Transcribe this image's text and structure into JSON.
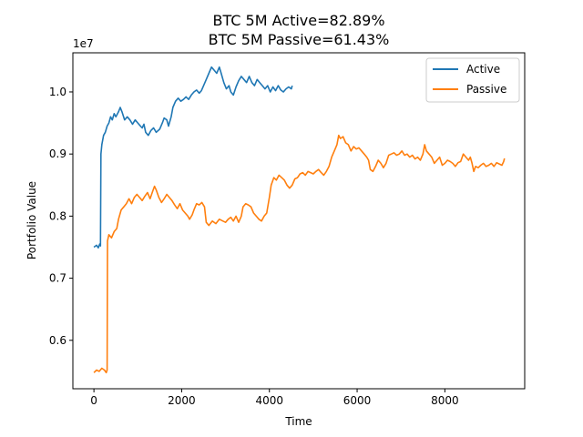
{
  "chart_data": {
    "type": "line",
    "title_line1": "BTC 5M Active=82.89%",
    "title_line2": "BTC 5M Passive=61.43%",
    "xlabel": "Time",
    "ylabel": "Portfolio Value",
    "y_offset_label": "1e7",
    "xlim": [
      -480,
      9820
    ],
    "ylim": [
      0.522,
      1.063
    ],
    "x_ticks": [
      {
        "value": 0,
        "label": "0"
      },
      {
        "value": 2000,
        "label": "2000"
      },
      {
        "value": 4000,
        "label": "4000"
      },
      {
        "value": 6000,
        "label": "6000"
      },
      {
        "value": 8000,
        "label": "8000"
      }
    ],
    "y_ticks": [
      {
        "value": 0.6,
        "label": "0.6"
      },
      {
        "value": 0.7,
        "label": "0.7"
      },
      {
        "value": 0.8,
        "label": "0.8"
      },
      {
        "value": 0.9,
        "label": "0.9"
      },
      {
        "value": 1.0,
        "label": "1.0"
      }
    ],
    "grid": false,
    "legend_position": "top-right",
    "series": [
      {
        "name": "Active",
        "color": "#1f77b4",
        "points": [
          [
            0,
            0.75
          ],
          [
            60,
            0.753
          ],
          [
            100,
            0.749
          ],
          [
            130,
            0.755
          ],
          [
            150,
            0.752
          ],
          [
            160,
            0.9
          ],
          [
            180,
            0.915
          ],
          [
            220,
            0.93
          ],
          [
            260,
            0.935
          ],
          [
            300,
            0.945
          ],
          [
            340,
            0.95
          ],
          [
            380,
            0.96
          ],
          [
            420,
            0.955
          ],
          [
            460,
            0.965
          ],
          [
            500,
            0.96
          ],
          [
            560,
            0.968
          ],
          [
            600,
            0.975
          ],
          [
            640,
            0.968
          ],
          [
            700,
            0.955
          ],
          [
            760,
            0.96
          ],
          [
            820,
            0.955
          ],
          [
            880,
            0.948
          ],
          [
            940,
            0.955
          ],
          [
            1000,
            0.95
          ],
          [
            1060,
            0.945
          ],
          [
            1100,
            0.942
          ],
          [
            1140,
            0.948
          ],
          [
            1180,
            0.935
          ],
          [
            1240,
            0.93
          ],
          [
            1300,
            0.938
          ],
          [
            1360,
            0.942
          ],
          [
            1420,
            0.935
          ],
          [
            1500,
            0.94
          ],
          [
            1560,
            0.95
          ],
          [
            1600,
            0.958
          ],
          [
            1660,
            0.955
          ],
          [
            1700,
            0.945
          ],
          [
            1760,
            0.96
          ],
          [
            1800,
            0.975
          ],
          [
            1860,
            0.985
          ],
          [
            1920,
            0.99
          ],
          [
            1980,
            0.985
          ],
          [
            2040,
            0.988
          ],
          [
            2100,
            0.992
          ],
          [
            2160,
            0.988
          ],
          [
            2220,
            0.995
          ],
          [
            2280,
            1.0
          ],
          [
            2340,
            1.003
          ],
          [
            2400,
            0.998
          ],
          [
            2450,
            1.002
          ],
          [
            2500,
            1.01
          ],
          [
            2560,
            1.02
          ],
          [
            2620,
            1.03
          ],
          [
            2680,
            1.04
          ],
          [
            2740,
            1.035
          ],
          [
            2800,
            1.03
          ],
          [
            2860,
            1.04
          ],
          [
            2900,
            1.03
          ],
          [
            2960,
            1.015
          ],
          [
            3020,
            1.005
          ],
          [
            3080,
            1.01
          ],
          [
            3120,
            1.0
          ],
          [
            3180,
            0.995
          ],
          [
            3240,
            1.008
          ],
          [
            3300,
            1.018
          ],
          [
            3360,
            1.025
          ],
          [
            3420,
            1.02
          ],
          [
            3480,
            1.015
          ],
          [
            3540,
            1.025
          ],
          [
            3600,
            1.015
          ],
          [
            3660,
            1.01
          ],
          [
            3720,
            1.02
          ],
          [
            3780,
            1.015
          ],
          [
            3840,
            1.01
          ],
          [
            3900,
            1.005
          ],
          [
            3960,
            1.01
          ],
          [
            4020,
            1.0
          ],
          [
            4080,
            1.008
          ],
          [
            4140,
            1.002
          ],
          [
            4200,
            1.01
          ],
          [
            4260,
            1.003
          ],
          [
            4320,
            1.0
          ],
          [
            4380,
            1.005
          ],
          [
            4440,
            1.008
          ],
          [
            4500,
            1.005
          ],
          [
            4520,
            1.01
          ]
        ]
      },
      {
        "name": "Passive",
        "color": "#ff7f0e",
        "points": [
          [
            0,
            0.548
          ],
          [
            60,
            0.552
          ],
          [
            120,
            0.55
          ],
          [
            180,
            0.555
          ],
          [
            240,
            0.552
          ],
          [
            280,
            0.548
          ],
          [
            300,
            0.552
          ],
          [
            310,
            0.76
          ],
          [
            340,
            0.77
          ],
          [
            400,
            0.765
          ],
          [
            460,
            0.775
          ],
          [
            520,
            0.78
          ],
          [
            560,
            0.795
          ],
          [
            620,
            0.81
          ],
          [
            680,
            0.815
          ],
          [
            740,
            0.82
          ],
          [
            800,
            0.828
          ],
          [
            860,
            0.82
          ],
          [
            920,
            0.83
          ],
          [
            980,
            0.835
          ],
          [
            1040,
            0.83
          ],
          [
            1100,
            0.825
          ],
          [
            1160,
            0.832
          ],
          [
            1220,
            0.838
          ],
          [
            1280,
            0.828
          ],
          [
            1340,
            0.84
          ],
          [
            1380,
            0.848
          ],
          [
            1420,
            0.842
          ],
          [
            1480,
            0.83
          ],
          [
            1540,
            0.822
          ],
          [
            1600,
            0.828
          ],
          [
            1660,
            0.835
          ],
          [
            1720,
            0.83
          ],
          [
            1780,
            0.825
          ],
          [
            1840,
            0.818
          ],
          [
            1900,
            0.812
          ],
          [
            1960,
            0.82
          ],
          [
            2020,
            0.81
          ],
          [
            2080,
            0.805
          ],
          [
            2140,
            0.8
          ],
          [
            2180,
            0.795
          ],
          [
            2240,
            0.802
          ],
          [
            2280,
            0.81
          ],
          [
            2340,
            0.82
          ],
          [
            2400,
            0.818
          ],
          [
            2460,
            0.822
          ],
          [
            2520,
            0.815
          ],
          [
            2560,
            0.79
          ],
          [
            2620,
            0.785
          ],
          [
            2700,
            0.792
          ],
          [
            2780,
            0.788
          ],
          [
            2860,
            0.795
          ],
          [
            2940,
            0.792
          ],
          [
            3000,
            0.79
          ],
          [
            3060,
            0.795
          ],
          [
            3120,
            0.798
          ],
          [
            3180,
            0.792
          ],
          [
            3240,
            0.8
          ],
          [
            3300,
            0.79
          ],
          [
            3360,
            0.8
          ],
          [
            3400,
            0.815
          ],
          [
            3460,
            0.82
          ],
          [
            3520,
            0.818
          ],
          [
            3580,
            0.815
          ],
          [
            3640,
            0.805
          ],
          [
            3700,
            0.8
          ],
          [
            3760,
            0.795
          ],
          [
            3820,
            0.792
          ],
          [
            3880,
            0.8
          ],
          [
            3940,
            0.805
          ],
          [
            4000,
            0.83
          ],
          [
            4040,
            0.85
          ],
          [
            4100,
            0.862
          ],
          [
            4160,
            0.858
          ],
          [
            4220,
            0.866
          ],
          [
            4280,
            0.862
          ],
          [
            4340,
            0.858
          ],
          [
            4400,
            0.85
          ],
          [
            4460,
            0.845
          ],
          [
            4520,
            0.85
          ],
          [
            4580,
            0.86
          ],
          [
            4640,
            0.862
          ],
          [
            4700,
            0.868
          ],
          [
            4760,
            0.87
          ],
          [
            4820,
            0.866
          ],
          [
            4880,
            0.872
          ],
          [
            4940,
            0.87
          ],
          [
            5000,
            0.868
          ],
          [
            5060,
            0.872
          ],
          [
            5120,
            0.875
          ],
          [
            5180,
            0.87
          ],
          [
            5240,
            0.866
          ],
          [
            5300,
            0.872
          ],
          [
            5360,
            0.88
          ],
          [
            5420,
            0.895
          ],
          [
            5480,
            0.905
          ],
          [
            5540,
            0.915
          ],
          [
            5580,
            0.93
          ],
          [
            5620,
            0.925
          ],
          [
            5680,
            0.928
          ],
          [
            5740,
            0.918
          ],
          [
            5800,
            0.915
          ],
          [
            5860,
            0.905
          ],
          [
            5920,
            0.912
          ],
          [
            5980,
            0.908
          ],
          [
            6040,
            0.91
          ],
          [
            6100,
            0.905
          ],
          [
            6160,
            0.9
          ],
          [
            6220,
            0.895
          ],
          [
            6260,
            0.89
          ],
          [
            6300,
            0.875
          ],
          [
            6360,
            0.872
          ],
          [
            6420,
            0.88
          ],
          [
            6480,
            0.89
          ],
          [
            6540,
            0.885
          ],
          [
            6600,
            0.878
          ],
          [
            6660,
            0.885
          ],
          [
            6720,
            0.898
          ],
          [
            6780,
            0.9
          ],
          [
            6840,
            0.902
          ],
          [
            6900,
            0.898
          ],
          [
            6960,
            0.9
          ],
          [
            7020,
            0.905
          ],
          [
            7080,
            0.898
          ],
          [
            7140,
            0.9
          ],
          [
            7200,
            0.895
          ],
          [
            7260,
            0.898
          ],
          [
            7320,
            0.892
          ],
          [
            7380,
            0.895
          ],
          [
            7440,
            0.89
          ],
          [
            7500,
            0.9
          ],
          [
            7540,
            0.915
          ],
          [
            7580,
            0.905
          ],
          [
            7640,
            0.9
          ],
          [
            7700,
            0.895
          ],
          [
            7760,
            0.885
          ],
          [
            7820,
            0.89
          ],
          [
            7880,
            0.895
          ],
          [
            7940,
            0.882
          ],
          [
            8000,
            0.885
          ],
          [
            8060,
            0.89
          ],
          [
            8120,
            0.888
          ],
          [
            8180,
            0.885
          ],
          [
            8240,
            0.88
          ],
          [
            8300,
            0.886
          ],
          [
            8360,
            0.888
          ],
          [
            8420,
            0.9
          ],
          [
            8480,
            0.895
          ],
          [
            8540,
            0.89
          ],
          [
            8580,
            0.895
          ],
          [
            8620,
            0.885
          ],
          [
            8660,
            0.872
          ],
          [
            8700,
            0.88
          ],
          [
            8760,
            0.878
          ],
          [
            8820,
            0.882
          ],
          [
            8880,
            0.885
          ],
          [
            8940,
            0.88
          ],
          [
            9000,
            0.882
          ],
          [
            9060,
            0.885
          ],
          [
            9120,
            0.88
          ],
          [
            9180,
            0.886
          ],
          [
            9240,
            0.884
          ],
          [
            9300,
            0.882
          ],
          [
            9340,
            0.888
          ],
          [
            9360,
            0.893
          ]
        ]
      }
    ]
  }
}
